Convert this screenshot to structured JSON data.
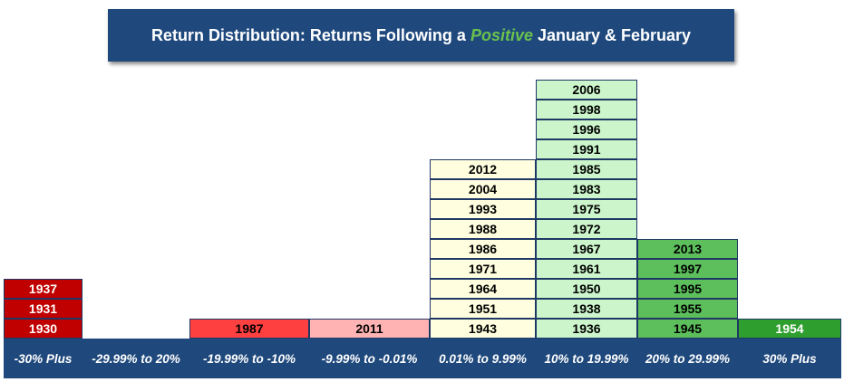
{
  "title": {
    "prefix": "Return Distribution: Returns Following a ",
    "highlight": "Positive",
    "suffix": " January & February"
  },
  "chart_data": {
    "type": "table",
    "categories": [
      "-30% Plus",
      "-29.99% to 20%",
      "-19.99% to -10%",
      "-9.99% to -0.01%",
      "0.01% to 9.99%",
      "10% to 19.99%",
      "20% to 29.99%",
      "30% Plus"
    ],
    "bins": [
      {
        "label": "-30% Plus",
        "years": [
          "1930",
          "1931",
          "1937"
        ],
        "fill": "#c00000",
        "text": "#ffffff"
      },
      {
        "label": "-29.99% to 20%",
        "years": [],
        "fill": "#e03030",
        "text": "#ffffff"
      },
      {
        "label": "-19.99% to -10%",
        "years": [
          "1987"
        ],
        "fill": "#ff4040",
        "text": "#000000"
      },
      {
        "label": "-9.99% to -0.01%",
        "years": [
          "2011"
        ],
        "fill": "#ffb3b3",
        "text": "#000000"
      },
      {
        "label": "0.01% to 9.99%",
        "years": [
          "1943",
          "1951",
          "1964",
          "1971",
          "1986",
          "1988",
          "1993",
          "2004",
          "2012"
        ],
        "fill": "#ffffe0",
        "text": "#000000"
      },
      {
        "label": "10% to 19.99%",
        "years": [
          "1936",
          "1938",
          "1950",
          "1961",
          "1967",
          "1972",
          "1975",
          "1983",
          "1985",
          "1991",
          "1996",
          "1998",
          "2006"
        ],
        "fill": "#ccf5cc",
        "text": "#000000"
      },
      {
        "label": "20% to 29.99%",
        "years": [
          "1945",
          "1955",
          "1995",
          "1997",
          "2013"
        ],
        "fill": "#5cbf5c",
        "text": "#000000"
      },
      {
        "label": "30% Plus",
        "years": [
          "1954"
        ],
        "fill": "#2e9e2e",
        "text": "#ffffff"
      }
    ]
  }
}
